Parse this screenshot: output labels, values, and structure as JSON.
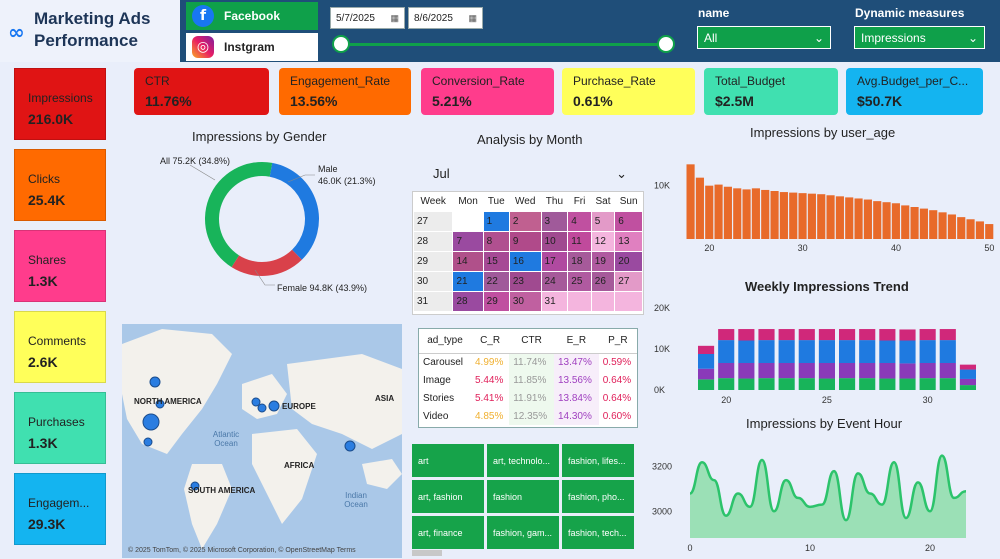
{
  "header": {
    "title_line1": "Marketing Ads",
    "title_line2": "Performance",
    "logo_icon": "meta-logo-icon"
  },
  "platforms": [
    {
      "label": "Facebook",
      "icon": "facebook-icon",
      "selected": true
    },
    {
      "label": "Instgram",
      "icon": "instagram-icon",
      "selected": false
    }
  ],
  "date_range": {
    "start": "5/7/2025",
    "end": "8/6/2025"
  },
  "filters": {
    "name_label": "name",
    "name_value": "All",
    "measure_label": "Dynamic measures",
    "measure_value": "Impressions"
  },
  "left_cards": [
    {
      "label": "Impressions",
      "value": "216.0K",
      "color": "#e01414"
    },
    {
      "label": "Clicks",
      "value": "25.4K",
      "color": "#ff6a00"
    },
    {
      "label": "Shares",
      "value": "1.3K",
      "color": "#ff3c8c"
    },
    {
      "label": "Comments",
      "value": "2.6K",
      "color": "#ffff5a"
    },
    {
      "label": "Purchases",
      "value": "1.3K",
      "color": "#40e0b0"
    },
    {
      "label": "Engagem...",
      "value": "29.3K",
      "color": "#14b4f0"
    }
  ],
  "kpis": [
    {
      "label": "CTR",
      "value": "11.76%",
      "color": "#e01414"
    },
    {
      "label": "Engagement_Rate",
      "value": "13.56%",
      "color": "#ff6a00"
    },
    {
      "label": "Conversion_Rate",
      "value": "5.21%",
      "color": "#ff3c8c"
    },
    {
      "label": "Purchase_Rate",
      "value": "0.61%",
      "color": "#ffff5a"
    },
    {
      "label": "Total_Budget",
      "value": "$2.5M",
      "color": "#40e0b0"
    },
    {
      "label": "Avg.Budget_per_C...",
      "value": "$50.7K",
      "color": "#14b4f0"
    }
  ],
  "gender": {
    "title": "Impressions by Gender",
    "slices": [
      {
        "label": "All",
        "text": "All 75.2K (34.8%)",
        "value": 75.2,
        "color": "#1f7ae0"
      },
      {
        "label": "Male",
        "text": "46.0K (21.3%)",
        "value": 46.0,
        "color": "#d9414a"
      },
      {
        "label": "Female",
        "text": "Female 94.8K (43.9%)",
        "value": 94.8,
        "color": "#18b45a"
      }
    ]
  },
  "month": {
    "title": "Analysis by Month",
    "selected": "Jul",
    "headers": [
      "Week",
      "Mon",
      "Tue",
      "Wed",
      "Thu",
      "Fri",
      "Sat",
      "Sun"
    ],
    "rows": [
      {
        "week": "27",
        "days": [
          "",
          "1",
          "2",
          "3",
          "4",
          "5",
          "6"
        ],
        "colors": [
          "#ffffff",
          "#1f7ae0",
          "#c06090",
          "#a05a9a",
          "#c050a0",
          "#e39ac8",
          "#c050a0"
        ]
      },
      {
        "week": "28",
        "days": [
          "7",
          "8",
          "9",
          "10",
          "11",
          "12",
          "13"
        ],
        "colors": [
          "#9a4aa0",
          "#b05090",
          "#b04a8a",
          "#a04a90",
          "#c04a9c",
          "#f4b5de",
          "#e080c0"
        ]
      },
      {
        "week": "29",
        "days": [
          "14",
          "15",
          "16",
          "17",
          "18",
          "19",
          "20"
        ],
        "colors": [
          "#b0508a",
          "#a64a95",
          "#1f7ae0",
          "#b04aa0",
          "#a65a9a",
          "#b05aa0",
          "#9a4aa0"
        ]
      },
      {
        "week": "30",
        "days": [
          "21",
          "22",
          "23",
          "24",
          "25",
          "26",
          "27"
        ],
        "colors": [
          "#1f7ae0",
          "#a05a9a",
          "#a04a90",
          "#a65a9a",
          "#b05aa0",
          "#a65a9a",
          "#e39ac8"
        ]
      },
      {
        "week": "31",
        "days": [
          "28",
          "29",
          "30",
          "31",
          "",
          "",
          ""
        ],
        "colors": [
          "#9a4aa0",
          "#c050a0",
          "#c060a0",
          "#f4b5de",
          "#f4b5de",
          "#f4b5de",
          "#f4b5de"
        ]
      }
    ]
  },
  "ad_types": {
    "headers": [
      "ad_type",
      "C_R",
      "CTR",
      "E_R",
      "P_R"
    ],
    "rows": [
      {
        "type": "Carousel",
        "cr": "4.99%",
        "ctr": "11.74%",
        "er": "13.47%",
        "pr": "0.59%"
      },
      {
        "type": "Image",
        "cr": "5.44%",
        "ctr": "11.85%",
        "er": "13.56%",
        "pr": "0.64%"
      },
      {
        "type": "Stories",
        "cr": "5.41%",
        "ctr": "11.91%",
        "er": "13.84%",
        "pr": "0.64%"
      },
      {
        "type": "Video",
        "cr": "4.85%",
        "ctr": "12.35%",
        "er": "14.30%",
        "pr": "0.60%"
      }
    ]
  },
  "interests": [
    "art",
    "art, technolo...",
    "fashion, lifes...",
    "art, fashion",
    "fashion",
    "fashion, pho...",
    "art, finance",
    "fashion, gam...",
    "fashion, tech..."
  ],
  "map": {
    "labels": [
      "NORTH AMERICA",
      "EUROPE",
      "ASIA",
      "AFRICA",
      "SOUTH AMERICA"
    ],
    "oceans": [
      "Atlantic Ocean",
      "Indian Ocean"
    ],
    "attribution": "© 2025 TomTom, © 2025 Microsoft Corporation, © OpenStreetMap  Terms"
  },
  "chart_data": [
    {
      "type": "bar",
      "title": "Impressions by user_age",
      "x": [
        18,
        19,
        20,
        21,
        22,
        23,
        24,
        25,
        26,
        27,
        28,
        29,
        30,
        31,
        32,
        33,
        34,
        35,
        36,
        37,
        38,
        39,
        40,
        41,
        42,
        43,
        44,
        45,
        46,
        47,
        48,
        49,
        50
      ],
      "values": [
        14000,
        11500,
        10000,
        10200,
        9800,
        9500,
        9300,
        9500,
        9200,
        9000,
        8800,
        8700,
        8600,
        8500,
        8400,
        8200,
        8000,
        7800,
        7600,
        7400,
        7100,
        6900,
        6700,
        6300,
        6000,
        5700,
        5400,
        5000,
        4600,
        4100,
        3700,
        3300,
        2800
      ],
      "xticks": [
        "20",
        "30",
        "40",
        "50"
      ],
      "yticks": [
        "10K"
      ],
      "color": "#e86a2a"
    },
    {
      "type": "bar",
      "title": "Weekly Impressions Trend",
      "stacked": true,
      "x": [
        19,
        20,
        21,
        22,
        23,
        24,
        25,
        26,
        27,
        28,
        29,
        30,
        31,
        32
      ],
      "xticks": [
        "20",
        "25",
        "30"
      ],
      "yticks": [
        "0K",
        "10K",
        "20K"
      ],
      "ylim": [
        0,
        22000
      ],
      "series": [
        {
          "color": "#18b45a",
          "values": [
            2600,
            2900,
            2800,
            2900,
            2900,
            2900,
            2800,
            2900,
            2900,
            2800,
            2800,
            2900,
            2900,
            1200
          ]
        },
        {
          "color": "#8a3ab9",
          "values": [
            2600,
            3700,
            3800,
            3700,
            3700,
            3700,
            3800,
            3700,
            3700,
            3800,
            3700,
            3700,
            3700,
            1500
          ]
        },
        {
          "color": "#1f7ae0",
          "values": [
            3600,
            5600,
            5500,
            5600,
            5600,
            5600,
            5600,
            5600,
            5600,
            5500,
            5600,
            5600,
            5600,
            2300
          ]
        },
        {
          "color": "#d0287a",
          "values": [
            2000,
            2700,
            2800,
            2700,
            2700,
            2700,
            2700,
            2700,
            2700,
            2800,
            2700,
            2700,
            2700,
            1200
          ]
        }
      ]
    },
    {
      "type": "area",
      "title": "Impressions by Event Hour",
      "x": [
        0,
        1,
        2,
        3,
        4,
        5,
        6,
        7,
        8,
        9,
        10,
        11,
        12,
        13,
        14,
        15,
        16,
        17,
        18,
        19,
        20,
        21,
        22,
        23
      ],
      "values": [
        3080,
        3220,
        3140,
        2980,
        3080,
        3020,
        3230,
        3000,
        3140,
        3060,
        3020,
        3030,
        3180,
        2960,
        3170,
        3080,
        3030,
        3220,
        2970,
        3130,
        3000,
        3250,
        3060,
        3090
      ],
      "xticks": [
        "0",
        "10",
        "20"
      ],
      "yticks": [
        "3000",
        "3200"
      ],
      "ylim": [
        2880,
        3320
      ],
      "color": "#2cc36b"
    }
  ]
}
